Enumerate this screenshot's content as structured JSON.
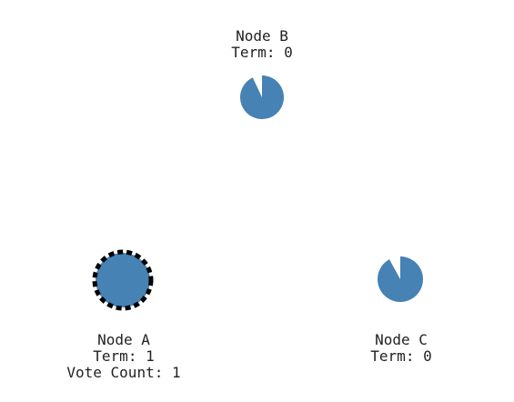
{
  "colors": {
    "node_fill": "#4682B4",
    "candidate_ring": "#000000",
    "text": "#222222",
    "background": "#ffffff"
  },
  "nodes": [
    {
      "id": "node-b",
      "name": "Node B",
      "term": "Term: 0",
      "vote_count": "",
      "state": "follower",
      "election_timer_remaining": 0.93
    },
    {
      "id": "node-a",
      "name": "Node A",
      "term": "Term: 1",
      "vote_count": "Vote Count: 1",
      "state": "candidate",
      "election_timer_remaining": 1.0
    },
    {
      "id": "node-c",
      "name": "Node C",
      "term": "Term: 0",
      "vote_count": "",
      "state": "follower",
      "election_timer_remaining": 0.92
    }
  ]
}
